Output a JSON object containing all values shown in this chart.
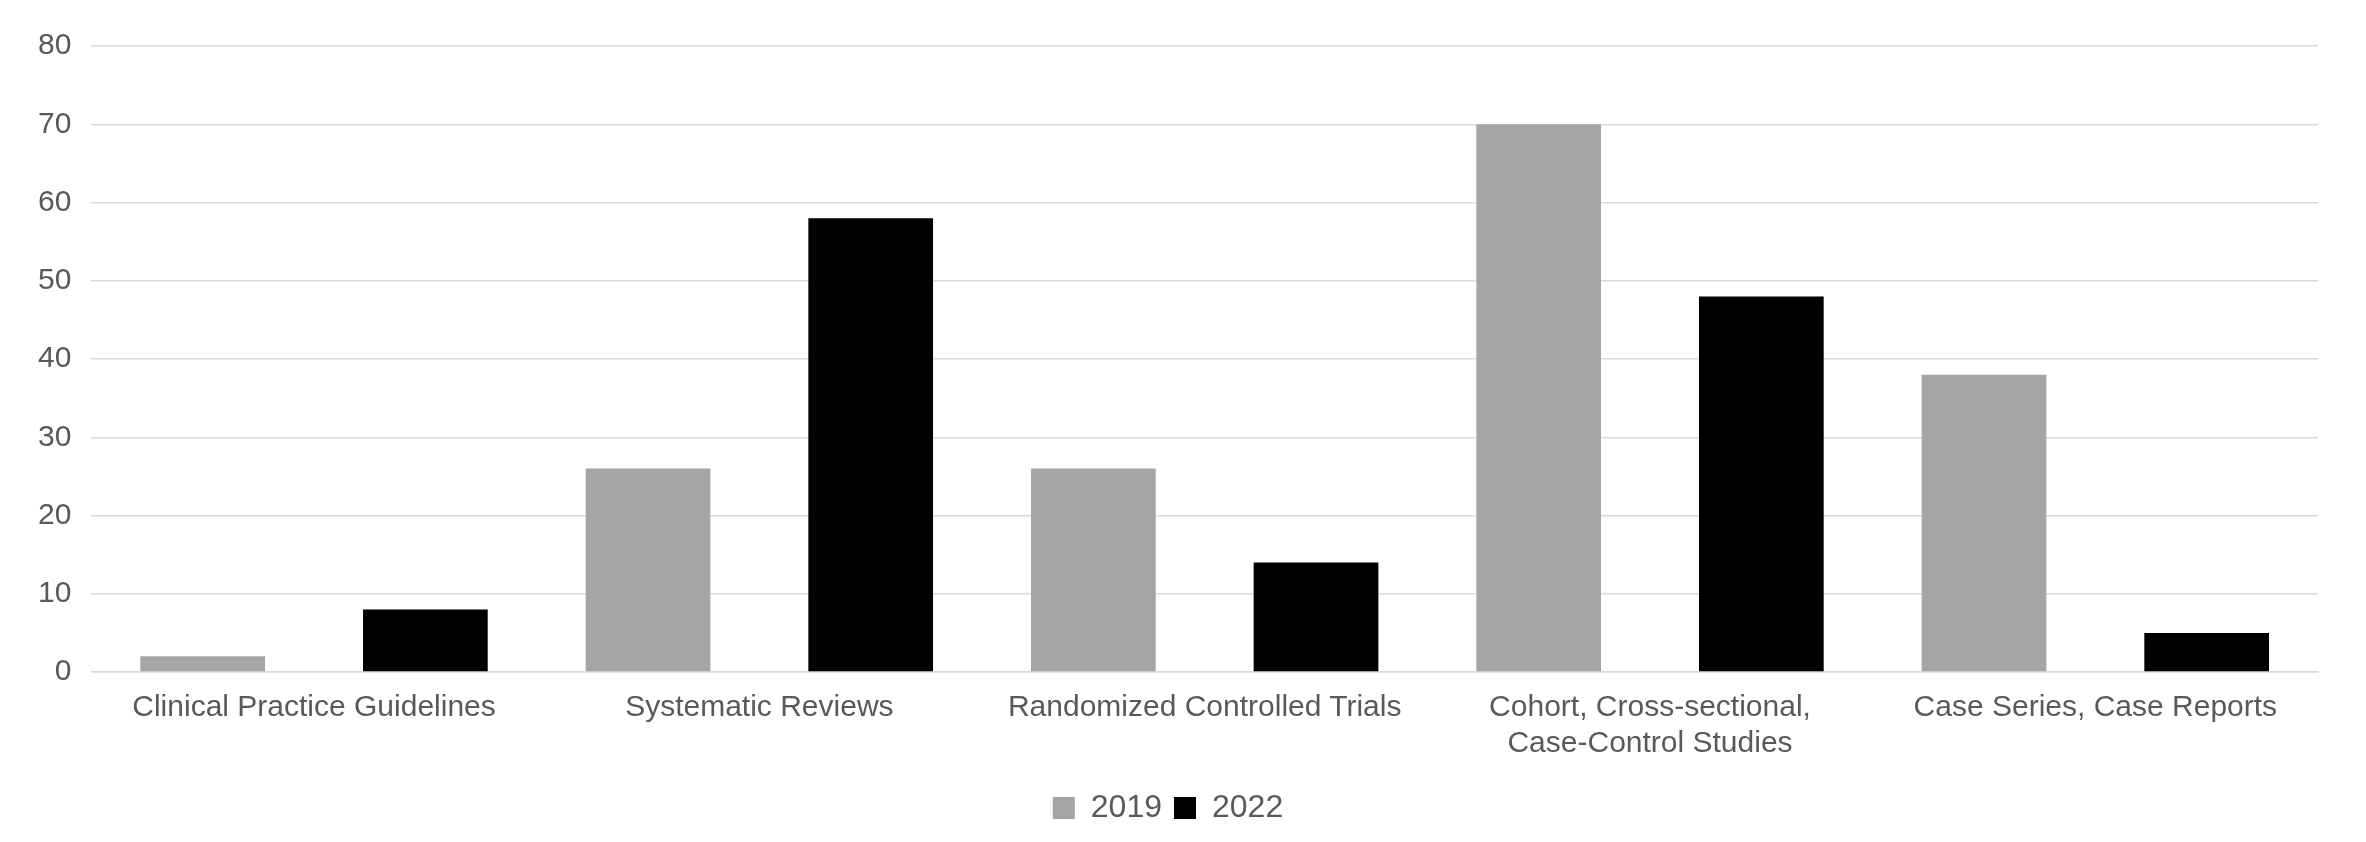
{
  "chart_data": {
    "type": "bar",
    "categories": [
      "Clinical Practice Guidelines",
      "Systematic Reviews",
      "Randomized Controlled Trials",
      "Cohort, Cross-sectional, Case-Control Studies",
      "Case Series, Case Reports"
    ],
    "series": [
      {
        "name": "2019",
        "color": "#a5a5a5",
        "values": [
          2,
          26,
          26,
          70,
          38
        ]
      },
      {
        "name": "2022",
        "color": "#000000",
        "values": [
          8,
          58,
          14,
          48,
          5
        ]
      }
    ],
    "ylim": [
      0,
      80
    ],
    "yticks": [
      0,
      10,
      20,
      30,
      40,
      50,
      60,
      70,
      80
    ],
    "grid": "y",
    "legend": "bottom"
  }
}
